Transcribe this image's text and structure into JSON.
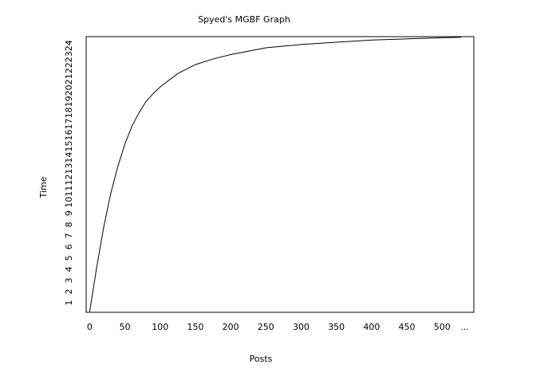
{
  "chart_data": {
    "type": "line",
    "title": "Spyed's MGBF Graph",
    "x_label": "Posts",
    "y_label": "Time",
    "x": [
      0,
      10,
      20,
      30,
      40,
      50,
      60,
      70,
      80,
      90,
      100,
      125,
      150,
      175,
      200,
      250,
      300,
      350,
      400,
      450,
      500,
      527
    ],
    "series": [
      {
        "color": "#000000",
        "values": [
          0.2,
          4.2,
          7.8,
          10.8,
          13.2,
          15.2,
          16.8,
          18.0,
          19.0,
          19.7,
          20.3,
          21.5,
          22.3,
          22.8,
          23.2,
          23.8,
          24.1,
          24.3,
          24.5,
          24.6,
          24.7,
          24.75
        ]
      }
    ],
    "xlim": [
      -5,
      545
    ],
    "ylim": [
      0.15,
      24.8
    ],
    "xticks": [
      0,
      50,
      100,
      150,
      200,
      250,
      300,
      350,
      400,
      450,
      500,
      {
        "value": 532,
        "label": "..."
      }
    ],
    "yticks": [
      1,
      2,
      3,
      4,
      5,
      6,
      7,
      8,
      9,
      10,
      11,
      12,
      13,
      14,
      15,
      16,
      17,
      18,
      19,
      20,
      21,
      22,
      23,
      24
    ],
    "grid": false
  }
}
